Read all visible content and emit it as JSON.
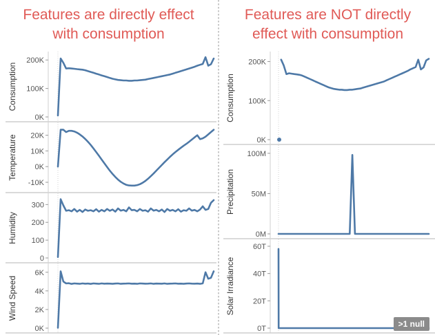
{
  "titles": {
    "left": "Features are directly effect\nwith consumption",
    "right": "Features are NOT directly\neffect with consumption"
  },
  "null_badge": ">1 null",
  "colors": {
    "line": "#4e79a7",
    "title": "#e05a56",
    "axis": "#8a8a8a",
    "grid": "#d0d0d0"
  },
  "chart_data": [
    {
      "type": "line",
      "ylabel": "Consumption",
      "ylim": [
        0,
        215000
      ],
      "ticks": [
        {
          "v": 0,
          "t": "0K"
        },
        {
          "v": 100000,
          "t": "100K"
        },
        {
          "v": 200000,
          "t": "200K"
        }
      ],
      "x": [
        0,
        1,
        2,
        3,
        4,
        5,
        6,
        7,
        8,
        9,
        10,
        11,
        12,
        13,
        14,
        15,
        16,
        17,
        18,
        19,
        20,
        21,
        22,
        23,
        24,
        25,
        26,
        27,
        28,
        29,
        30,
        31,
        32,
        33,
        34,
        35,
        36,
        37,
        38,
        39,
        40,
        41,
        42,
        43,
        44,
        45,
        46,
        47,
        48,
        49,
        50,
        51,
        52,
        53,
        54,
        55,
        56,
        57
      ],
      "values": [
        5000,
        205000,
        190000,
        170000,
        171000,
        170000,
        169000,
        168000,
        167000,
        166000,
        164000,
        161000,
        158000,
        155000,
        152000,
        149000,
        146000,
        143000,
        140000,
        137000,
        134000,
        132000,
        130000,
        129000,
        128000,
        128000,
        127000,
        127000,
        128000,
        128000,
        129000,
        130000,
        131000,
        133000,
        135000,
        137000,
        139000,
        141000,
        143000,
        145000,
        147000,
        149000,
        152000,
        155000,
        158000,
        161000,
        164000,
        167000,
        170000,
        173000,
        176000,
        180000,
        183000,
        186000,
        210000,
        180000,
        185000,
        205000
      ]
    },
    {
      "type": "line",
      "ylabel": "Temperature",
      "ylim": [
        -13500,
        25500
      ],
      "ticks": [
        {
          "v": -10000,
          "t": "-10K"
        },
        {
          "v": 0,
          "t": "0K"
        },
        {
          "v": 10000,
          "t": "10K"
        },
        {
          "v": 20000,
          "t": "20K"
        }
      ],
      "x": [
        0,
        1,
        2,
        3,
        4,
        5,
        6,
        7,
        8,
        9,
        10,
        11,
        12,
        13,
        14,
        15,
        16,
        17,
        18,
        19,
        20,
        21,
        22,
        23,
        24,
        25,
        26,
        27,
        28,
        29,
        30,
        31,
        32,
        33,
        34,
        35,
        36,
        37,
        38,
        39,
        40,
        41,
        42,
        43,
        44,
        45,
        46,
        47,
        48,
        49,
        50,
        51,
        52,
        53,
        54,
        55,
        56,
        57
      ],
      "values": [
        0,
        23500,
        23500,
        22000,
        22800,
        22800,
        22400,
        21600,
        20500,
        19200,
        17600,
        15800,
        13800,
        11600,
        9300,
        6900,
        4500,
        2100,
        -300,
        -2600,
        -4700,
        -6600,
        -8300,
        -9700,
        -10800,
        -11600,
        -12000,
        -12100,
        -12100,
        -11800,
        -11200,
        -10300,
        -9100,
        -7700,
        -6100,
        -4400,
        -2600,
        -800,
        1000,
        2800,
        4500,
        6200,
        7800,
        9300,
        10700,
        12000,
        13300,
        14500,
        15800,
        17200,
        18600,
        20000,
        17500,
        18000,
        19000,
        20500,
        22000,
        23500
      ]
    },
    {
      "type": "line",
      "ylabel": "Humidity",
      "ylim": [
        0,
        340
      ],
      "ticks": [
        {
          "v": 0,
          "t": "0"
        },
        {
          "v": 100,
          "t": "100"
        },
        {
          "v": 200,
          "t": "200"
        },
        {
          "v": 300,
          "t": "300"
        }
      ],
      "x": [
        0,
        1,
        2,
        3,
        4,
        5,
        6,
        7,
        8,
        9,
        10,
        11,
        12,
        13,
        14,
        15,
        16,
        17,
        18,
        19,
        20,
        21,
        22,
        23,
        24,
        25,
        26,
        27,
        28,
        29,
        30,
        31,
        32,
        33,
        34,
        35,
        36,
        37,
        38,
        39,
        40,
        41,
        42,
        43,
        44,
        45,
        46,
        47,
        48,
        49,
        50,
        51,
        52,
        53,
        54,
        55,
        56,
        57
      ],
      "values": [
        5,
        330,
        295,
        265,
        268,
        262,
        275,
        260,
        270,
        258,
        272,
        265,
        268,
        262,
        274,
        260,
        270,
        262,
        275,
        265,
        272,
        260,
        278,
        266,
        270,
        262,
        284,
        268,
        270,
        262,
        275,
        265,
        268,
        260,
        278,
        266,
        270,
        262,
        272,
        258,
        275,
        265,
        270,
        262,
        274,
        260,
        268,
        265,
        278,
        266,
        270,
        262,
        272,
        290,
        270,
        275,
        310,
        325
      ]
    },
    {
      "type": "line",
      "ylabel": "Wind Speed",
      "ylim": [
        0,
        6500
      ],
      "ticks": [
        {
          "v": 0,
          "t": "0K"
        },
        {
          "v": 2000,
          "t": "2K"
        },
        {
          "v": 4000,
          "t": "4K"
        },
        {
          "v": 6000,
          "t": "6K"
        }
      ],
      "x": [
        0,
        1,
        2,
        3,
        4,
        5,
        6,
        7,
        8,
        9,
        10,
        11,
        12,
        13,
        14,
        15,
        16,
        17,
        18,
        19,
        20,
        21,
        22,
        23,
        24,
        25,
        26,
        27,
        28,
        29,
        30,
        31,
        32,
        33,
        34,
        35,
        36,
        37,
        38,
        39,
        40,
        41,
        42,
        43,
        44,
        45,
        46,
        47,
        48,
        49,
        50,
        51,
        52,
        53,
        54,
        55,
        56,
        57
      ],
      "values": [
        30,
        6100,
        5000,
        4800,
        4820,
        4750,
        4800,
        4780,
        4760,
        4800,
        4770,
        4790,
        4750,
        4800,
        4780,
        4760,
        4800,
        4770,
        4790,
        4780,
        4760,
        4790,
        4800,
        4760,
        4780,
        4790,
        4800,
        4770,
        4780,
        4760,
        4800,
        4790,
        4770,
        4780,
        4800,
        4760,
        4790,
        4780,
        4770,
        4800,
        4760,
        4780,
        4790,
        4800,
        4770,
        4780,
        4760,
        4790,
        4800,
        4780,
        4770,
        4790,
        4760,
        4800,
        6000,
        5300,
        5400,
        6100
      ]
    },
    {
      "type": "line",
      "ylabel": "Consumption",
      "ylim": [
        0,
        215000
      ],
      "ticks": [
        {
          "v": 0,
          "t": "0K"
        },
        {
          "v": 100000,
          "t": "100K"
        },
        {
          "v": 200000,
          "t": "200K"
        }
      ],
      "points": [
        {
          "x": -1,
          "y": 0
        }
      ],
      "x": [
        1,
        2,
        3,
        4,
        5,
        6,
        7,
        8,
        9,
        10,
        11,
        12,
        13,
        14,
        15,
        16,
        17,
        18,
        19,
        20,
        21,
        22,
        23,
        24,
        25,
        26,
        27,
        28,
        29,
        30,
        31,
        32,
        33,
        34,
        35,
        36,
        37,
        38,
        39,
        40,
        41,
        42,
        43,
        44,
        45,
        46,
        47,
        48,
        49,
        50,
        51,
        52,
        53,
        54,
        55,
        56,
        57
      ],
      "values": [
        205000,
        190000,
        168000,
        170000,
        169000,
        168000,
        167000,
        166000,
        164000,
        161000,
        158000,
        155000,
        152000,
        149000,
        146000,
        143000,
        140000,
        137000,
        134000,
        132000,
        130000,
        129000,
        128000,
        128000,
        127000,
        127000,
        128000,
        128000,
        129000,
        130000,
        131000,
        133000,
        135000,
        137000,
        139000,
        141000,
        143000,
        145000,
        147000,
        149000,
        152000,
        155000,
        158000,
        161000,
        164000,
        167000,
        170000,
        173000,
        176000,
        180000,
        183000,
        186000,
        205000,
        180000,
        185000,
        203000,
        207000
      ]
    },
    {
      "type": "line",
      "ylabel": "Precipitation",
      "ylim": [
        0,
        105000000
      ],
      "ticks": [
        {
          "v": 0,
          "t": "0M"
        },
        {
          "v": 50000000,
          "t": "50M"
        },
        {
          "v": 100000000,
          "t": "100M"
        }
      ],
      "x": [
        0,
        1,
        2,
        3,
        4,
        5,
        6,
        7,
        8,
        9,
        10,
        11,
        12,
        13,
        14,
        15,
        16,
        17,
        18,
        19,
        20,
        21,
        22,
        23,
        24,
        25,
        26,
        27,
        28,
        29,
        30,
        31,
        32,
        33,
        34,
        35,
        36,
        37,
        38,
        39,
        40,
        41,
        42,
        43,
        44,
        45,
        46,
        47,
        48,
        49,
        50,
        51,
        52,
        53,
        54,
        55,
        56,
        57
      ],
      "values": [
        0,
        0,
        0,
        0,
        0,
        0,
        0,
        0,
        0,
        0,
        0,
        0,
        0,
        0,
        0,
        0,
        0,
        0,
        0,
        0,
        0,
        0,
        0,
        0,
        0,
        0,
        0,
        0,
        98000000,
        0,
        0,
        0,
        0,
        0,
        0,
        0,
        0,
        0,
        0,
        0,
        0,
        0,
        0,
        0,
        0,
        0,
        0,
        0,
        0,
        0,
        0,
        0,
        0,
        0,
        0,
        0,
        0,
        0
      ]
    },
    {
      "type": "line",
      "ylabel": "Solar Irradiance",
      "ylim": [
        0,
        62000000000000
      ],
      "ticks": [
        {
          "v": 0,
          "t": "0T"
        },
        {
          "v": 20000000000000,
          "t": "20T"
        },
        {
          "v": 40000000000000,
          "t": "40T"
        },
        {
          "v": 60000000000000,
          "t": "60T"
        }
      ],
      "x": [
        0,
        0.05,
        57
      ],
      "values": [
        58000000000000,
        0,
        0
      ]
    }
  ]
}
